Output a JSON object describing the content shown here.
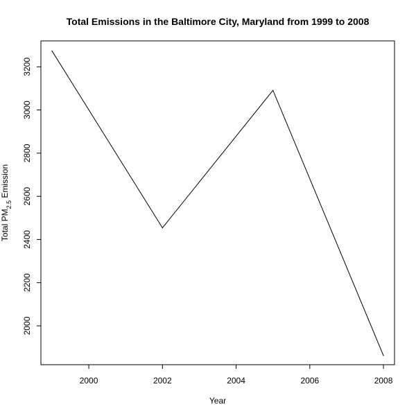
{
  "chart_data": {
    "type": "line",
    "title": "Total Emissions in the Baltimore City, Maryland from 1999 to 2008",
    "xlabel": "Year",
    "ylabel": {
      "prefix": "Total PM",
      "subscript": "2.5",
      "suffix": " Emission"
    },
    "x": [
      1999,
      2002,
      2005,
      2008
    ],
    "series": [
      {
        "values": [
          3274,
          2454,
          3091,
          1862
        ]
      }
    ],
    "xlim": [
      1998.7,
      2008.3
    ],
    "ylim": [
      1820,
      3320
    ],
    "xticks": [
      2000,
      2002,
      2004,
      2006,
      2008
    ],
    "yticks": [
      2000,
      2200,
      2400,
      2600,
      2800,
      3000,
      3200
    ],
    "grid": false,
    "line_color": "#000000"
  }
}
